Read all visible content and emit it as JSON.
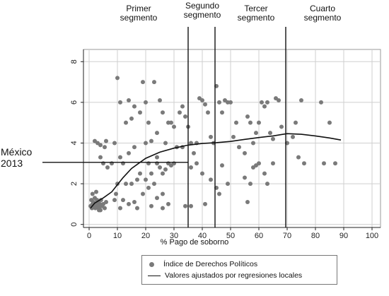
{
  "segment_labels": [
    {
      "id": "primer",
      "text": "Primer\nsegmento"
    },
    {
      "id": "segundo",
      "text": "Segundo\nsegmento"
    },
    {
      "id": "tercer",
      "text": "Tercer\nsegmento"
    },
    {
      "id": "cuarto",
      "text": "Cuarto\nsegmento"
    }
  ],
  "mexico_label": "México\n2013",
  "chart_data": {
    "type": "scatter",
    "title": "",
    "xlabel": "% Pago de soborno",
    "ylabel": "",
    "xlim": [
      -2,
      103
    ],
    "ylim": [
      -0.15,
      8.6
    ],
    "xticks": [
      0,
      10,
      20,
      30,
      40,
      50,
      60,
      70,
      80,
      90,
      100
    ],
    "yticks": [
      0,
      2,
      4,
      6,
      8
    ],
    "grid": true,
    "legend_position": "bottom",
    "series": [
      {
        "name": "Índice de Derechos Políticos",
        "type": "scatter",
        "color": "#7a7a7a",
        "points": [
          [
            0.5,
            0.9
          ],
          [
            0.8,
            1.2
          ],
          [
            1,
            0.8
          ],
          [
            1.2,
            1.0
          ],
          [
            1.5,
            1.1
          ],
          [
            1.8,
            0.9
          ],
          [
            2,
            1.3
          ],
          [
            2.2,
            0.8
          ],
          [
            2.5,
            1.0
          ],
          [
            2.8,
            1.2
          ],
          [
            3,
            0.9
          ],
          [
            3.2,
            1.1
          ],
          [
            3.5,
            0.8
          ],
          [
            3.8,
            1.0
          ],
          [
            4,
            0.7
          ],
          [
            4.2,
            1.2
          ],
          [
            4.5,
            0.9
          ],
          [
            5,
            1.0
          ],
          [
            5.5,
            0.8
          ],
          [
            6,
            1.1
          ],
          [
            1.2,
            1.5
          ],
          [
            2.5,
            1.6
          ],
          [
            3.5,
            0.7
          ],
          [
            2,
            4.1
          ],
          [
            3,
            4.0
          ],
          [
            4,
            3.9
          ],
          [
            5.5,
            3.8
          ],
          [
            4,
            3.3
          ],
          [
            5,
            3.0
          ],
          [
            6,
            4.1
          ],
          [
            6.5,
            2.8
          ],
          [
            8,
            3.0
          ],
          [
            9,
            4.0
          ],
          [
            10,
            2.0
          ],
          [
            11,
            3.3
          ],
          [
            12,
            3.0
          ],
          [
            13,
            2.0
          ],
          [
            14,
            3.5
          ],
          [
            9,
            1.2
          ],
          [
            9.5,
            1.5
          ],
          [
            11,
            0.8
          ],
          [
            12,
            1.2
          ],
          [
            14,
            1.0
          ],
          [
            16,
            1.1
          ],
          [
            17,
            0.8
          ],
          [
            15,
            2.0
          ],
          [
            16,
            3.8
          ],
          [
            17,
            2.2
          ],
          [
            18,
            2.5
          ],
          [
            19,
            1.5
          ],
          [
            20,
            2.2
          ],
          [
            21,
            3.0
          ],
          [
            22,
            2.5
          ],
          [
            23,
            2.0
          ],
          [
            24,
            3.0
          ],
          [
            25,
            2.8
          ],
          [
            26,
            2.5
          ],
          [
            27,
            2.7
          ],
          [
            28,
            3.0
          ],
          [
            29,
            2.9
          ],
          [
            30,
            3.0
          ],
          [
            21,
            1.8
          ],
          [
            22,
            0.9
          ],
          [
            24,
            1.3
          ],
          [
            26,
            0.8
          ],
          [
            26,
            1.5
          ],
          [
            28,
            1.0
          ],
          [
            10,
            7.2
          ],
          [
            11,
            6.0
          ],
          [
            13,
            5.0
          ],
          [
            14,
            6.1
          ],
          [
            15,
            5.2
          ],
          [
            16,
            5.8
          ],
          [
            18,
            5.5
          ],
          [
            19,
            7.0
          ],
          [
            20,
            6.0
          ],
          [
            21,
            5.0
          ],
          [
            22,
            4.1
          ],
          [
            23,
            7.0
          ],
          [
            24,
            4.5
          ],
          [
            25,
            6.1
          ],
          [
            26,
            5.5
          ],
          [
            27,
            4.0
          ],
          [
            28,
            5.0
          ],
          [
            29,
            5.0
          ],
          [
            30,
            4.8
          ],
          [
            32,
            5.5
          ],
          [
            33,
            5.8
          ],
          [
            34,
            5.3
          ],
          [
            35,
            4.8
          ],
          [
            20,
            4.0
          ],
          [
            24,
            3.3
          ],
          [
            31,
            3.8
          ],
          [
            33,
            3.8
          ],
          [
            36,
            4.0
          ],
          [
            37,
            3.5
          ],
          [
            38,
            4.0
          ],
          [
            39,
            6.2
          ],
          [
            40,
            6.1
          ],
          [
            41,
            5.9
          ],
          [
            42,
            5.5
          ],
          [
            43,
            4.3
          ],
          [
            44,
            4.0
          ],
          [
            45,
            6.8
          ],
          [
            46,
            6.0
          ],
          [
            47,
            5.5
          ],
          [
            48,
            6.1
          ],
          [
            49,
            6.0
          ],
          [
            50,
            6.0
          ],
          [
            51,
            4.3
          ],
          [
            36,
            2.8
          ],
          [
            38,
            3.0
          ],
          [
            40,
            2.5
          ],
          [
            41,
            1.0
          ],
          [
            43,
            2.2
          ],
          [
            45,
            1.8
          ],
          [
            46,
            1.5
          ],
          [
            47,
            2.9
          ],
          [
            49,
            2.0
          ],
          [
            34,
            0.9
          ],
          [
            36,
            0.9
          ],
          [
            52,
            5.0
          ],
          [
            53,
            3.8
          ],
          [
            55,
            3.5
          ],
          [
            56,
            5.3
          ],
          [
            57,
            5.0
          ],
          [
            58,
            4.0
          ],
          [
            59,
            4.5
          ],
          [
            60,
            5.0
          ],
          [
            61,
            6.0
          ],
          [
            62,
            5.8
          ],
          [
            63,
            6.0
          ],
          [
            64,
            4.5
          ],
          [
            65,
            4.2
          ],
          [
            66,
            6.2
          ],
          [
            67,
            6.1
          ],
          [
            68,
            4.8
          ],
          [
            55,
            2.3
          ],
          [
            56,
            1.1
          ],
          [
            57,
            2.0
          ],
          [
            58,
            2.8
          ],
          [
            59,
            2.9
          ],
          [
            60,
            3.0
          ],
          [
            62,
            2.5
          ],
          [
            63,
            2.0
          ],
          [
            65,
            3.0
          ],
          [
            70,
            4.0
          ],
          [
            72,
            4.3
          ],
          [
            73,
            5.0
          ],
          [
            74,
            3.3
          ],
          [
            75,
            6.1
          ],
          [
            76,
            3.0
          ],
          [
            82,
            6.0
          ],
          [
            83,
            3.0
          ],
          [
            85,
            5.0
          ],
          [
            87,
            3.0
          ]
        ]
      },
      {
        "name": "Valores ajustados por regresiones locales",
        "type": "line",
        "color": "#111111",
        "points": [
          [
            0.5,
            0.8
          ],
          [
            2,
            1.05
          ],
          [
            5,
            1.3
          ],
          [
            8,
            1.6
          ],
          [
            10,
            1.95
          ],
          [
            12,
            2.3
          ],
          [
            15,
            2.75
          ],
          [
            18,
            3.05
          ],
          [
            20,
            3.25
          ],
          [
            25,
            3.55
          ],
          [
            30,
            3.75
          ],
          [
            35,
            3.9
          ],
          [
            40,
            3.98
          ],
          [
            45,
            4.02
          ],
          [
            50,
            4.08
          ],
          [
            55,
            4.18
          ],
          [
            60,
            4.27
          ],
          [
            65,
            4.35
          ],
          [
            68,
            4.42
          ],
          [
            70,
            4.46
          ],
          [
            75,
            4.43
          ],
          [
            80,
            4.35
          ],
          [
            85,
            4.25
          ],
          [
            89,
            4.15
          ]
        ]
      }
    ],
    "segment_boundaries_x": [
      35,
      44.5,
      69.5
    ],
    "annotation": {
      "label_ref": "mexico_label",
      "y": 3.05,
      "x_end": 35
    }
  },
  "legend_entries": [
    {
      "marker": "dot",
      "text": "Índice de Derechos Políticos"
    },
    {
      "marker": "line",
      "text": "Valores ajustados por regresiones locales"
    }
  ]
}
